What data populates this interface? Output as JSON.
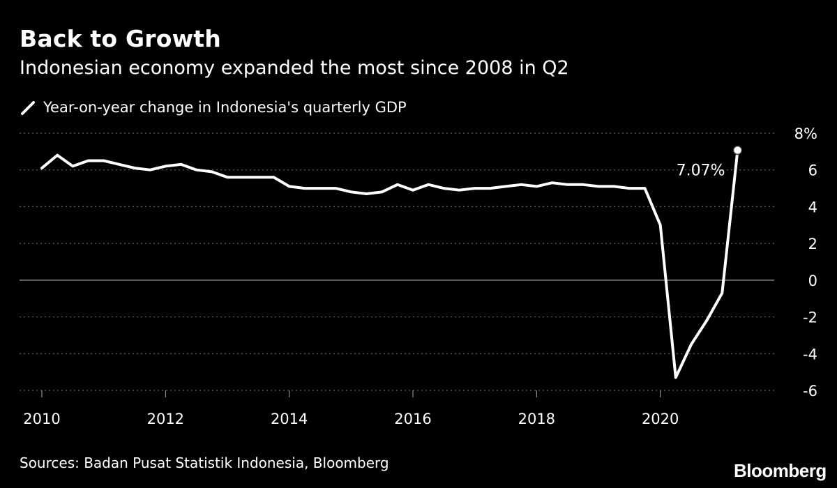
{
  "header": {
    "title": "Back to Growth",
    "subtitle": "Indonesian economy expanded the most since 2008 in Q2"
  },
  "footer": {
    "source": "Sources: Badan Pusat Statistik Indonesia, Bloomberg",
    "brand": "Bloomberg"
  },
  "colors": {
    "background": "#000000",
    "line": "#ffffff",
    "grid": "#777777"
  },
  "chart_data": {
    "type": "line",
    "title": "Back to Growth",
    "subtitle": "Indonesian economy expanded the most since 2008 in Q2",
    "xlabel": "",
    "ylabel": "",
    "ylim": [
      -6,
      8
    ],
    "y_ticks": [
      8,
      6,
      4,
      2,
      0,
      -2,
      -4,
      -6
    ],
    "y_tick_labels": [
      "8%",
      "6",
      "4",
      "2",
      "0",
      "-2",
      "-4",
      "-6"
    ],
    "x_ticks": [
      "2010",
      "2012",
      "2014",
      "2016",
      "2018",
      "2020"
    ],
    "grid": true,
    "legend": "top-left",
    "annotation": {
      "text": "7.07%",
      "x": "2021 Q2",
      "y": 7.07
    },
    "series": [
      {
        "name": "Year-on-year change in Indonesia's quarterly GDP",
        "x": [
          "2010 Q1",
          "2010 Q2",
          "2010 Q3",
          "2010 Q4",
          "2011 Q1",
          "2011 Q2",
          "2011 Q3",
          "2011 Q4",
          "2012 Q1",
          "2012 Q2",
          "2012 Q3",
          "2012 Q4",
          "2013 Q1",
          "2013 Q2",
          "2013 Q3",
          "2013 Q4",
          "2014 Q1",
          "2014 Q2",
          "2014 Q3",
          "2014 Q4",
          "2015 Q1",
          "2015 Q2",
          "2015 Q3",
          "2015 Q4",
          "2016 Q1",
          "2016 Q2",
          "2016 Q3",
          "2016 Q4",
          "2017 Q1",
          "2017 Q2",
          "2017 Q3",
          "2017 Q4",
          "2018 Q1",
          "2018 Q2",
          "2018 Q3",
          "2018 Q4",
          "2019 Q1",
          "2019 Q2",
          "2019 Q3",
          "2019 Q4",
          "2020 Q1",
          "2020 Q2",
          "2020 Q3",
          "2020 Q4",
          "2021 Q1",
          "2021 Q2"
        ],
        "values": [
          6.1,
          6.8,
          6.2,
          6.5,
          6.5,
          6.3,
          6.1,
          6.0,
          6.2,
          6.3,
          6.0,
          5.9,
          5.6,
          5.6,
          5.6,
          5.6,
          5.1,
          5.0,
          5.0,
          5.0,
          4.8,
          4.7,
          4.8,
          5.2,
          4.9,
          5.2,
          5.0,
          4.9,
          5.0,
          5.0,
          5.1,
          5.2,
          5.1,
          5.3,
          5.2,
          5.2,
          5.1,
          5.1,
          5.0,
          5.0,
          3.0,
          -5.3,
          -3.5,
          -2.2,
          -0.7,
          7.07
        ]
      }
    ]
  }
}
